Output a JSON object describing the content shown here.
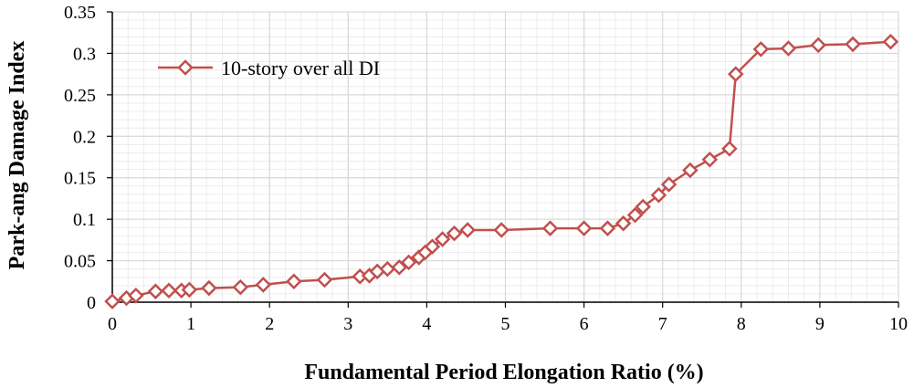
{
  "chart_data": {
    "type": "line",
    "xlabel": "Fundamental Period Elongation Ratio (%)",
    "ylabel": "Park-ang Damage Index",
    "xlim": [
      0,
      10
    ],
    "ylim": [
      0,
      0.35
    ],
    "x_ticks": [
      "0",
      "1",
      "2",
      "3",
      "4",
      "5",
      "6",
      "7",
      "8",
      "9",
      "10"
    ],
    "y_ticks": [
      "0",
      "0.05",
      "0.1",
      "0.15",
      "0.2",
      "0.25",
      "0.3",
      "0.35"
    ],
    "grid": true,
    "legend_position": "top-left",
    "colors": {
      "series": "#c0504d",
      "grid": "#d9d9d9",
      "axis": "#000000"
    },
    "series": [
      {
        "name": "10-story over all DI",
        "marker": "diamond",
        "x": [
          0,
          0.18,
          0.3,
          0.55,
          0.72,
          0.88,
          0.98,
          1.23,
          1.63,
          1.92,
          2.31,
          2.7,
          3.15,
          3.27,
          3.37,
          3.5,
          3.65,
          3.77,
          3.9,
          3.98,
          4.07,
          4.2,
          4.35,
          4.52,
          4.95,
          5.57,
          6.0,
          6.3,
          6.5,
          6.65,
          6.75,
          6.95,
          7.08,
          7.35,
          7.6,
          7.85,
          7.93,
          8.25,
          8.6,
          8.98,
          9.42,
          9.9
        ],
        "y": [
          0.001,
          0.005,
          0.008,
          0.013,
          0.014,
          0.014,
          0.015,
          0.017,
          0.018,
          0.021,
          0.025,
          0.027,
          0.031,
          0.032,
          0.037,
          0.04,
          0.042,
          0.048,
          0.054,
          0.06,
          0.067,
          0.076,
          0.083,
          0.087,
          0.087,
          0.089,
          0.089,
          0.089,
          0.095,
          0.105,
          0.115,
          0.129,
          0.142,
          0.159,
          0.172,
          0.185,
          0.275,
          0.305,
          0.306,
          0.31,
          0.311,
          0.314
        ]
      }
    ]
  }
}
